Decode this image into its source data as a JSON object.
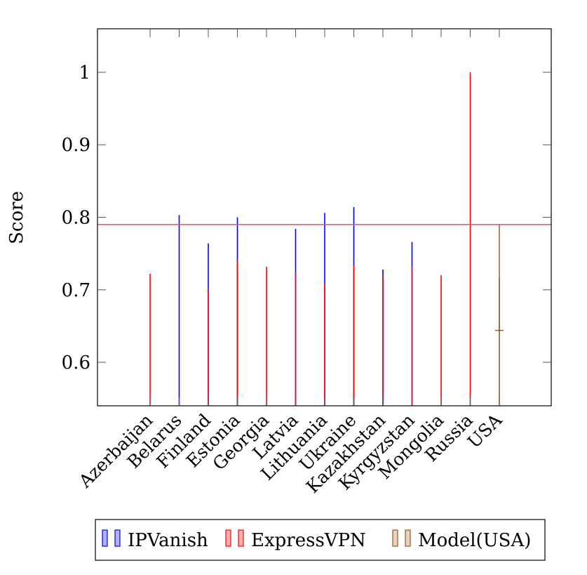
{
  "chart_data": {
    "type": "bar",
    "title": "",
    "xlabel": "",
    "ylabel": "Score",
    "ylim": [
      0.54,
      1.06
    ],
    "yticks": [
      "0.6",
      "0.7",
      "0.8",
      "0.9",
      "1"
    ],
    "grid": false,
    "legend_position": "bottom",
    "categories": [
      "Azerbaijan",
      "Belarus",
      "Finland",
      "Estonia",
      "Georgia",
      "Latvia",
      "Lithuania",
      "Ukraine",
      "Kazakhstan",
      "Kyrgyzstan",
      "Mongolia",
      "Russia",
      "USA"
    ],
    "series": [
      {
        "name": "IPVanish",
        "color": "#0000ff",
        "values": [
          null,
          0.803,
          0.764,
          0.8,
          null,
          0.784,
          0.806,
          0.814,
          0.728,
          0.766,
          null,
          null,
          null
        ]
      },
      {
        "name": "ExpressVPN",
        "color": "#ff0000",
        "values": [
          0.722,
          null,
          0.701,
          0.741,
          0.732,
          0.723,
          0.709,
          0.734,
          0.719,
          0.733,
          0.72,
          1.0,
          null
        ]
      },
      {
        "name": "Model(USA)",
        "color": "#8b5a2b",
        "values": [
          null,
          null,
          null,
          null,
          null,
          null,
          null,
          null,
          null,
          null,
          null,
          null,
          0.716
        ]
      }
    ],
    "error_bar": {
      "category": "USA",
      "low": 0.644,
      "high": 0.79
    },
    "reference_line": {
      "y": 0.79,
      "color": "#e06070"
    }
  }
}
